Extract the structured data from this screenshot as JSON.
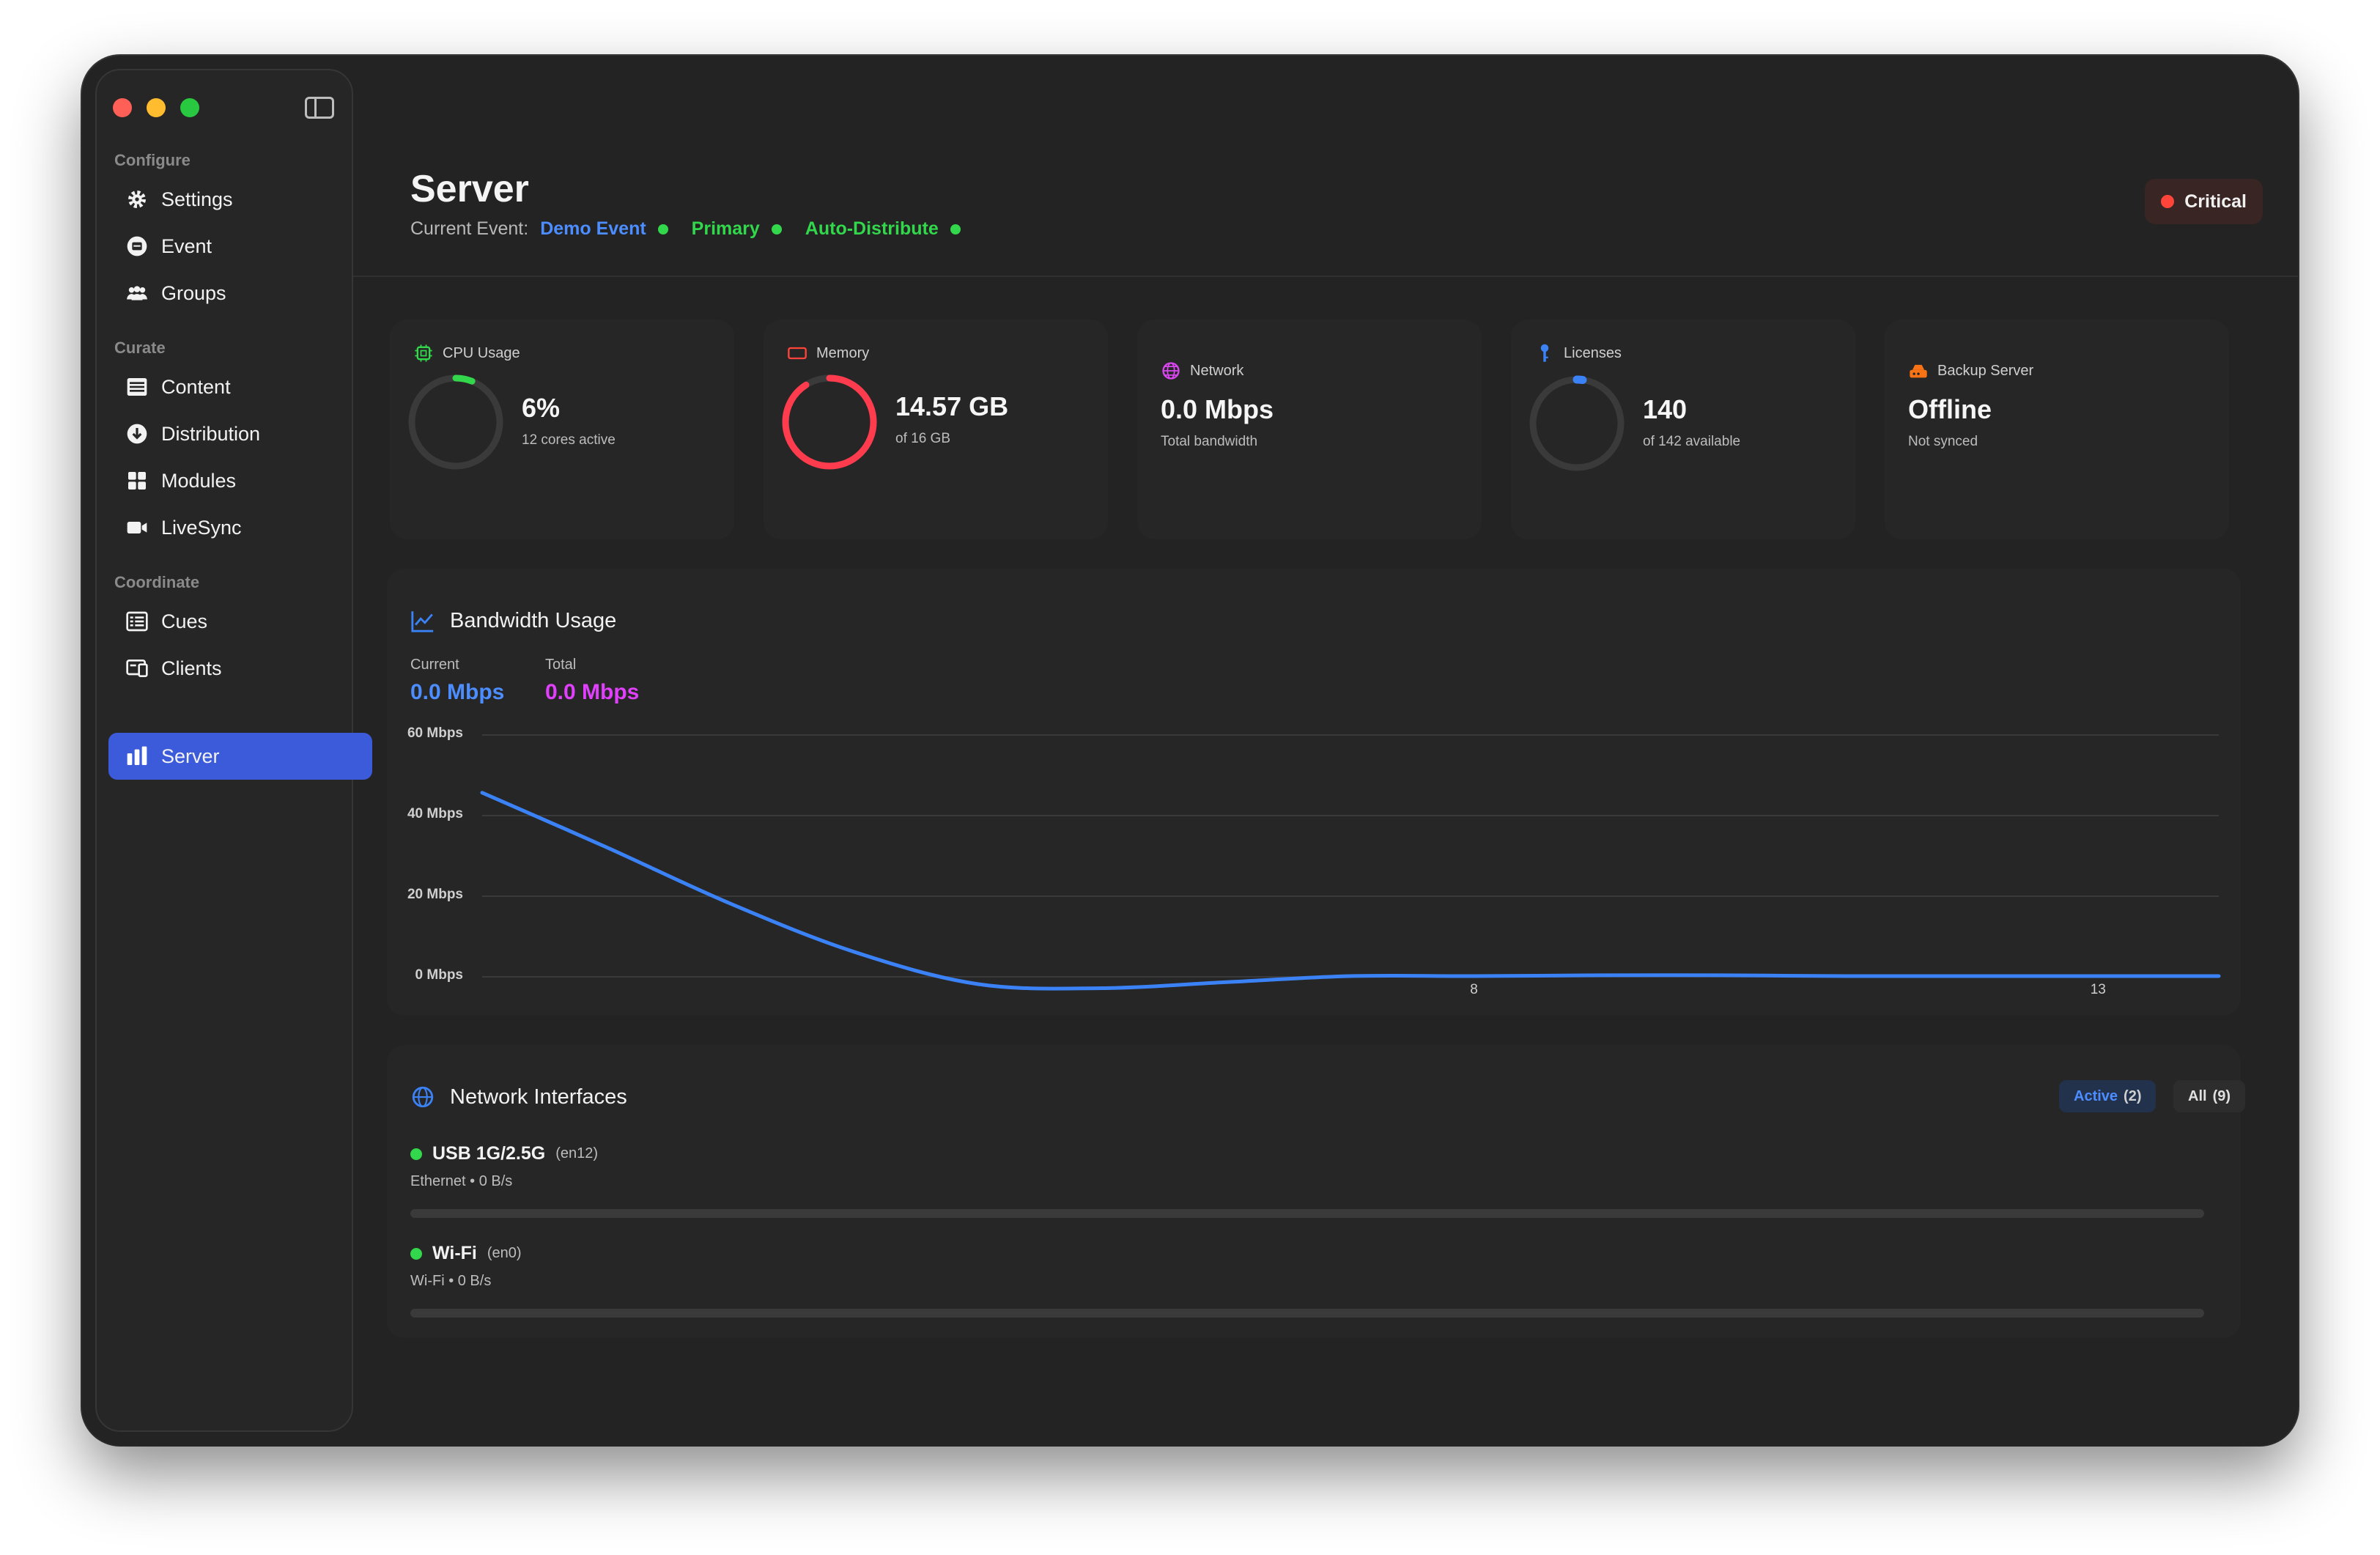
{
  "window": {
    "traffic_lights": [
      "close",
      "minimize",
      "zoom"
    ]
  },
  "sidebar": {
    "sections": [
      {
        "label": "Configure",
        "items": [
          {
            "label": "Settings",
            "icon": "gear-icon"
          },
          {
            "label": "Event",
            "icon": "event-icon"
          },
          {
            "label": "Groups",
            "icon": "groups-icon"
          }
        ]
      },
      {
        "label": "Curate",
        "items": [
          {
            "label": "Content",
            "icon": "content-icon"
          },
          {
            "label": "Distribution",
            "icon": "distribution-icon"
          },
          {
            "label": "Modules",
            "icon": "modules-icon"
          },
          {
            "label": "LiveSync",
            "icon": "video-icon"
          }
        ]
      },
      {
        "label": "Coordinate",
        "items": [
          {
            "label": "Cues",
            "icon": "cues-icon"
          },
          {
            "label": "Clients",
            "icon": "clients-icon"
          },
          {
            "label": "Server",
            "icon": "server-chart-icon",
            "active": true
          }
        ]
      }
    ]
  },
  "header": {
    "title": "Server",
    "current_event_label": "Current Event:",
    "event_name": "Demo Event",
    "role": "Primary",
    "mode": "Auto-Distribute",
    "status": "Critical"
  },
  "stats": {
    "cpu": {
      "label": "CPU Usage",
      "value": "6%",
      "sub": "12 cores active",
      "fraction": 0.06,
      "color": "#32d74b"
    },
    "memory": {
      "label": "Memory",
      "value": "14.57 GB",
      "sub": "of 16 GB",
      "fraction": 0.91,
      "color": "#ff3b4e"
    },
    "network": {
      "label": "Network",
      "value": "0.0 Mbps",
      "sub": "Total bandwidth"
    },
    "licenses": {
      "label": "Licenses",
      "value": "140",
      "sub": "of 142 available",
      "fraction": 0.014,
      "color": "#3b82f6"
    },
    "backup": {
      "label": "Backup Server",
      "value": "Offline",
      "sub": "Not synced"
    }
  },
  "bandwidth": {
    "title": "Bandwidth Usage",
    "current_label": "Current",
    "current_value": "0.0 Mbps",
    "total_label": "Total",
    "total_value": "0.0 Mbps",
    "current_color": "#4c8dff",
    "total_color": "#e040fb"
  },
  "chart_data": {
    "type": "line",
    "title": "Bandwidth Usage",
    "y_ticks": [
      "60 Mbps",
      "40 Mbps",
      "20 Mbps",
      "0 Mbps"
    ],
    "x_ticks": [
      "8",
      "13"
    ],
    "ylim": [
      0,
      60
    ],
    "x": [
      0,
      1,
      2,
      3,
      4,
      5,
      6,
      7,
      8,
      9,
      10,
      11,
      12,
      13,
      14
    ],
    "series": [
      {
        "values": [
          45.5,
          32,
          18,
          6,
          -2,
          -3,
          -1.5,
          0,
          0,
          0.2,
          0.2,
          0,
          0,
          0,
          0
        ],
        "color": "#3b82f6"
      }
    ],
    "grid": true
  },
  "interfaces": {
    "title": "Network Interfaces",
    "filter_active_label": "Active",
    "filter_active_count": "(2)",
    "filter_all_label": "All",
    "filter_all_count": "(9)",
    "items": [
      {
        "name": "USB 1G/2.5G",
        "device": "(en12)",
        "sub": "Ethernet • 0 B/s"
      },
      {
        "name": "Wi-Fi",
        "device": "(en0)",
        "sub": "Wi-Fi • 0 B/s"
      }
    ]
  }
}
